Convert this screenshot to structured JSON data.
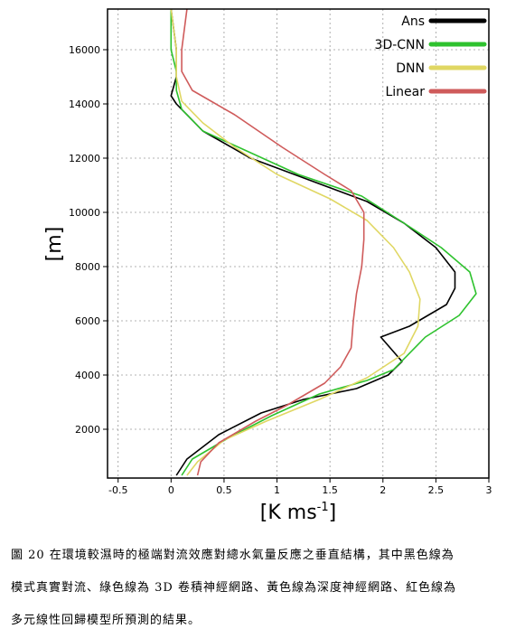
{
  "chart_data": {
    "type": "line",
    "title": "",
    "xlabel_main": "K  ms",
    "xlabel_exp": "-1",
    "ylabel": "[m]",
    "xlim": [
      -0.6,
      3.0
    ],
    "ylim": [
      200,
      17500
    ],
    "x_ticks": [
      -0.5,
      0,
      0.5,
      1,
      1.5,
      2,
      2.5,
      3
    ],
    "x_tick_labels": [
      "-0.5",
      "0",
      "0.5",
      "1",
      "1.5",
      "2",
      "2.5",
      "3"
    ],
    "y_ticks": [
      2000,
      4000,
      6000,
      8000,
      10000,
      12000,
      14000,
      16000
    ],
    "y_tick_labels": [
      "2000",
      "4000",
      "6000",
      "8000",
      "10000",
      "12000",
      "14000",
      "16000"
    ],
    "grid": true,
    "legend": "top-right",
    "series": [
      {
        "name": "Ans",
        "color": "#000000",
        "points": [
          [
            0.05,
            300
          ],
          [
            0.15,
            900
          ],
          [
            0.45,
            1800
          ],
          [
            0.85,
            2600
          ],
          [
            1.25,
            3100
          ],
          [
            1.75,
            3500
          ],
          [
            2.05,
            4000
          ],
          [
            2.18,
            4500
          ],
          [
            1.98,
            5400
          ],
          [
            2.25,
            5800
          ],
          [
            2.6,
            6600
          ],
          [
            2.68,
            7200
          ],
          [
            2.68,
            7800
          ],
          [
            2.5,
            8700
          ],
          [
            2.2,
            9600
          ],
          [
            1.85,
            10400
          ],
          [
            1.3,
            11200
          ],
          [
            0.75,
            12000
          ],
          [
            0.3,
            13000
          ],
          [
            0.05,
            14000
          ],
          [
            0.0,
            14300
          ],
          [
            0.05,
            15000
          ],
          [
            0.05,
            16000
          ],
          [
            0.0,
            17500
          ]
        ]
      },
      {
        "name": "3D-CNN",
        "color": "#2ec22e",
        "points": [
          [
            0.1,
            300
          ],
          [
            0.2,
            900
          ],
          [
            0.55,
            1700
          ],
          [
            0.95,
            2500
          ],
          [
            1.4,
            3300
          ],
          [
            1.85,
            3800
          ],
          [
            2.1,
            4200
          ],
          [
            2.2,
            4600
          ],
          [
            2.4,
            5400
          ],
          [
            2.72,
            6200
          ],
          [
            2.88,
            7000
          ],
          [
            2.82,
            7800
          ],
          [
            2.55,
            8700
          ],
          [
            2.2,
            9600
          ],
          [
            1.8,
            10600
          ],
          [
            1.2,
            11400
          ],
          [
            0.75,
            12200
          ],
          [
            0.3,
            13000
          ],
          [
            0.1,
            13800
          ],
          [
            0.05,
            14500
          ],
          [
            0.05,
            15200
          ],
          [
            0.0,
            16000
          ],
          [
            0.0,
            17500
          ]
        ]
      },
      {
        "name": "DNN",
        "color": "#e0d763",
        "points": [
          [
            0.15,
            300
          ],
          [
            0.25,
            800
          ],
          [
            0.5,
            1600
          ],
          [
            0.9,
            2300
          ],
          [
            1.4,
            3100
          ],
          [
            1.85,
            3900
          ],
          [
            2.2,
            4800
          ],
          [
            2.33,
            5800
          ],
          [
            2.35,
            6800
          ],
          [
            2.25,
            7800
          ],
          [
            2.1,
            8700
          ],
          [
            1.85,
            9700
          ],
          [
            1.5,
            10500
          ],
          [
            1.0,
            11400
          ],
          [
            0.6,
            12400
          ],
          [
            0.3,
            13300
          ],
          [
            0.1,
            14100
          ],
          [
            0.05,
            15000
          ],
          [
            0.05,
            16000
          ],
          [
            0.0,
            17500
          ]
        ]
      },
      {
        "name": "Linear",
        "color": "#cf5b5b",
        "points": [
          [
            0.25,
            300
          ],
          [
            0.28,
            800
          ],
          [
            0.45,
            1500
          ],
          [
            0.8,
            2300
          ],
          [
            1.1,
            2900
          ],
          [
            1.45,
            3700
          ],
          [
            1.6,
            4300
          ],
          [
            1.7,
            5000
          ],
          [
            1.72,
            6000
          ],
          [
            1.75,
            7000
          ],
          [
            1.8,
            8000
          ],
          [
            1.82,
            9000
          ],
          [
            1.82,
            10000
          ],
          [
            1.7,
            10800
          ],
          [
            1.45,
            11400
          ],
          [
            1.05,
            12400
          ],
          [
            0.6,
            13600
          ],
          [
            0.2,
            14500
          ],
          [
            0.1,
            15200
          ],
          [
            0.1,
            16000
          ],
          [
            0.15,
            17500
          ]
        ]
      }
    ]
  },
  "caption": {
    "line1": "圖 20  在環境較濕時的極端對流效應對總水氣量反應之垂直結構，其中黑色線為",
    "line2": "模式真實對流、綠色線為 3D 卷積神經網路、黃色線為深度神經網路、紅色線為",
    "line3": "多元線性回歸模型所預測的結果。"
  }
}
